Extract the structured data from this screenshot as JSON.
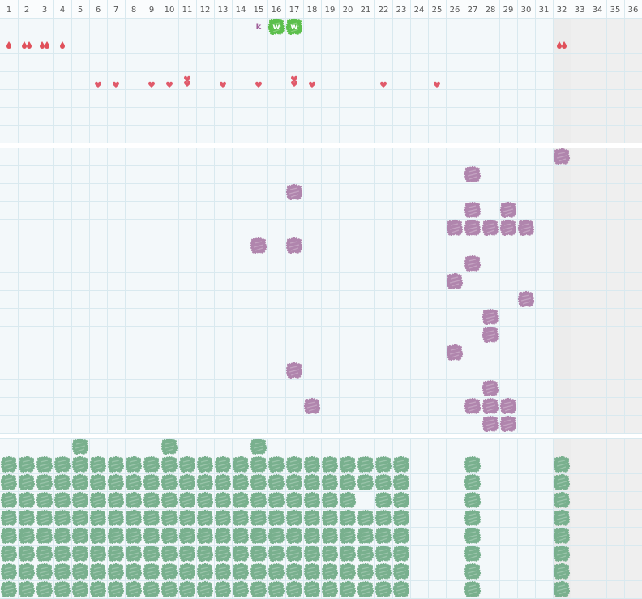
{
  "columns": [
    1,
    2,
    3,
    4,
    5,
    6,
    7,
    8,
    9,
    10,
    11,
    12,
    13,
    14,
    15,
    16,
    17,
    18,
    19,
    20,
    21,
    22,
    23,
    24,
    25,
    26,
    27,
    28,
    29,
    30,
    31,
    32,
    33,
    34,
    35,
    36
  ],
  "section1": {
    "labels": [
      {
        "col": 15,
        "text": "k",
        "style": "letter"
      },
      {
        "col": 16,
        "text": "w",
        "style": "badge"
      },
      {
        "col": 17,
        "text": "w",
        "style": "badge"
      }
    ],
    "drops": [
      {
        "col": 1,
        "count": 1
      },
      {
        "col": 2,
        "count": 2
      },
      {
        "col": 3,
        "count": 2
      },
      {
        "col": 4,
        "count": 1
      },
      {
        "col": 32,
        "count": 2
      }
    ],
    "hearts": [
      {
        "col": 6,
        "count": 1
      },
      {
        "col": 7,
        "count": 1
      },
      {
        "col": 9,
        "count": 1
      },
      {
        "col": 10,
        "count": 1
      },
      {
        "col": 11,
        "count": 2
      },
      {
        "col": 13,
        "count": 1
      },
      {
        "col": 15,
        "count": 1
      },
      {
        "col": 17,
        "count": 2
      },
      {
        "col": 18,
        "count": 1
      },
      {
        "col": 22,
        "count": 1
      },
      {
        "col": 25,
        "count": 1
      }
    ]
  },
  "section2": {
    "rows": [
      [
        32
      ],
      [
        27
      ],
      [
        17
      ],
      [
        27,
        29
      ],
      [
        26,
        27,
        28,
        29,
        30
      ],
      [
        15,
        17
      ],
      [
        27
      ],
      [
        26
      ],
      [
        30
      ],
      [
        28
      ],
      [
        28
      ],
      [
        26
      ],
      [
        17
      ],
      [
        28
      ],
      [
        18,
        27,
        28,
        29
      ],
      [
        28,
        29
      ]
    ]
  },
  "section3": {
    "rows": [
      [
        5,
        10,
        15
      ],
      [
        1,
        2,
        3,
        4,
        5,
        6,
        7,
        8,
        9,
        10,
        11,
        12,
        13,
        14,
        15,
        16,
        17,
        18,
        19,
        20,
        21,
        22,
        23,
        27,
        32
      ],
      [
        1,
        2,
        3,
        4,
        5,
        6,
        7,
        8,
        9,
        10,
        11,
        12,
        13,
        14,
        15,
        16,
        17,
        18,
        19,
        20,
        21,
        22,
        23,
        27,
        32
      ],
      [
        1,
        2,
        3,
        4,
        5,
        6,
        7,
        8,
        9,
        10,
        11,
        12,
        13,
        14,
        15,
        16,
        17,
        18,
        19,
        20,
        22,
        23,
        27,
        32
      ],
      [
        1,
        2,
        3,
        4,
        5,
        6,
        7,
        8,
        9,
        10,
        11,
        12,
        13,
        14,
        15,
        16,
        17,
        18,
        19,
        20,
        21,
        22,
        23,
        27,
        32
      ],
      [
        1,
        2,
        3,
        4,
        5,
        6,
        7,
        8,
        9,
        10,
        11,
        12,
        13,
        14,
        15,
        16,
        17,
        18,
        19,
        20,
        21,
        22,
        23,
        27,
        32
      ],
      [
        1,
        2,
        3,
        4,
        5,
        6,
        7,
        8,
        9,
        10,
        11,
        12,
        13,
        14,
        15,
        16,
        17,
        18,
        19,
        20,
        21,
        22,
        23,
        27,
        32
      ],
      [
        1,
        2,
        3,
        4,
        5,
        6,
        7,
        8,
        9,
        10,
        11,
        12,
        13,
        14,
        15,
        16,
        17,
        18,
        19,
        20,
        21,
        22,
        23,
        27,
        32
      ],
      [
        1,
        2,
        3,
        4,
        5,
        6,
        7,
        8,
        9,
        10,
        11,
        12,
        13,
        14,
        15,
        16,
        17,
        18,
        19,
        20,
        21,
        22,
        23,
        27,
        32
      ]
    ]
  }
}
